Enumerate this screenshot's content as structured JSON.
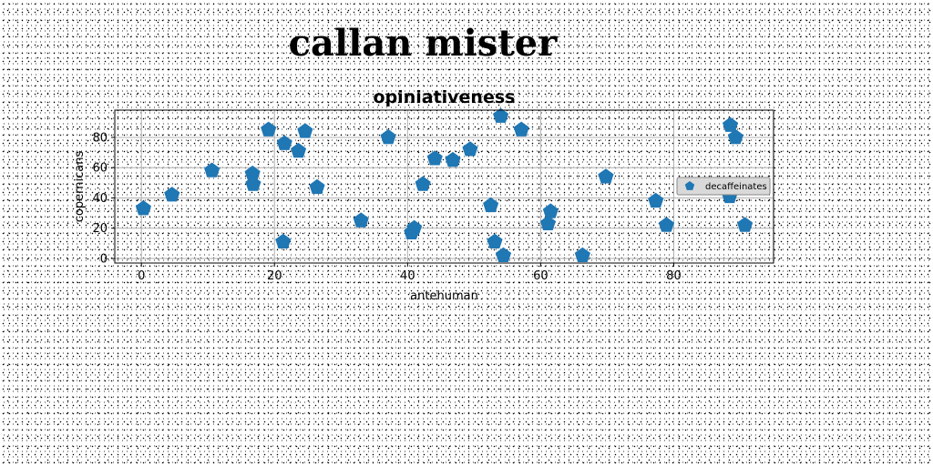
{
  "suptitle": "callan mister",
  "chart_data": {
    "type": "scatter",
    "title": "opiniativeness",
    "xlabel": "antehuman",
    "ylabel": "copernicans",
    "xlim": [
      -4,
      95
    ],
    "ylim": [
      -3,
      98
    ],
    "xticks": [
      0,
      20,
      40,
      60,
      80
    ],
    "yticks": [
      0,
      20,
      40,
      60,
      80
    ],
    "grid": true,
    "legend_position": "right",
    "color": "#1f77b4",
    "marker": "pentagon",
    "series": [
      {
        "name": "decaffeinates",
        "points": [
          [
            0.3,
            33
          ],
          [
            4.6,
            42
          ],
          [
            10.6,
            58
          ],
          [
            16.7,
            56
          ],
          [
            16.8,
            49
          ],
          [
            19.1,
            85
          ],
          [
            21.3,
            11
          ],
          [
            21.5,
            76
          ],
          [
            23.6,
            71
          ],
          [
            24.6,
            84
          ],
          [
            26.4,
            47
          ],
          [
            33.0,
            25
          ],
          [
            37.1,
            80
          ],
          [
            40.6,
            17
          ],
          [
            41.0,
            20
          ],
          [
            42.3,
            49
          ],
          [
            44.1,
            66
          ],
          [
            46.8,
            65
          ],
          [
            49.4,
            72
          ],
          [
            52.5,
            35
          ],
          [
            53.1,
            11
          ],
          [
            54.0,
            94
          ],
          [
            54.4,
            2
          ],
          [
            57.1,
            85
          ],
          [
            61.1,
            23
          ],
          [
            61.5,
            31
          ],
          [
            66.3,
            2
          ],
          [
            69.8,
            54
          ],
          [
            77.3,
            38
          ],
          [
            78.9,
            22
          ],
          [
            88.4,
            41
          ],
          [
            88.5,
            88
          ],
          [
            89.3,
            80
          ],
          [
            90.7,
            22
          ]
        ]
      }
    ]
  }
}
